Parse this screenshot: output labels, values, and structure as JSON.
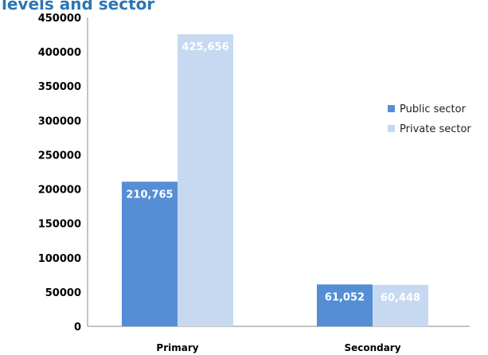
{
  "chart_data": {
    "type": "bar",
    "title": "levels and sector",
    "categories": [
      "Primary",
      "Secondary"
    ],
    "series": [
      {
        "name": "Public sector",
        "color": "#558ed5",
        "values": [
          210765,
          61052
        ],
        "value_labels": [
          "210,765",
          "61,052"
        ]
      },
      {
        "name": "Private sector",
        "color": "#c6d9f1",
        "values": [
          425656,
          60448
        ],
        "value_labels": [
          "425,656",
          "60,448"
        ]
      }
    ],
    "ylim": [
      0,
      450000
    ],
    "yticks": [
      0,
      50000,
      100000,
      150000,
      200000,
      250000,
      300000,
      350000,
      400000,
      450000
    ],
    "grid": false,
    "legend": "right"
  }
}
